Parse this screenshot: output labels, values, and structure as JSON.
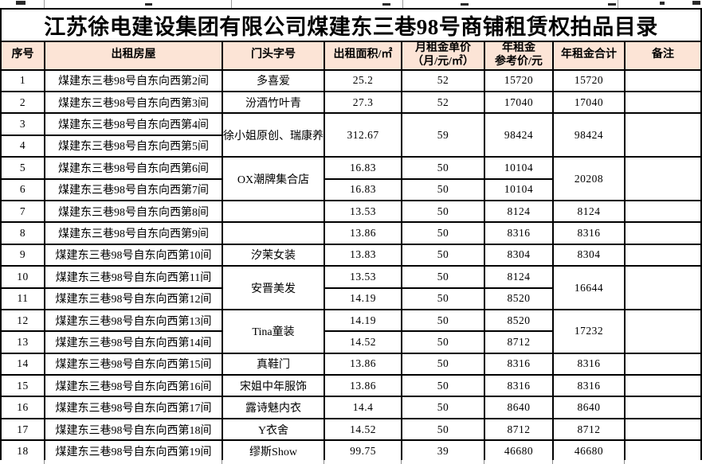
{
  "table": {
    "title": "江苏徐电建设集团有限公司煤建东三巷98号商铺租赁权拍品目录",
    "header_bg_color": "#FCE4D6",
    "border_color": "#000000",
    "columns": [
      {
        "id": "no",
        "lines": [
          "序号"
        ]
      },
      {
        "id": "house",
        "lines": [
          "出租房屋"
        ]
      },
      {
        "id": "shop",
        "lines": [
          "门头字号"
        ]
      },
      {
        "id": "area",
        "lines": [
          "出租面积/㎡"
        ]
      },
      {
        "id": "unit",
        "lines": [
          "月租金单价",
          "（月/元/㎡）"
        ]
      },
      {
        "id": "ref",
        "lines": [
          "年租金",
          "参考价/元"
        ]
      },
      {
        "id": "total",
        "lines": [
          "年租金合计"
        ]
      },
      {
        "id": "note",
        "lines": [
          "备注"
        ]
      }
    ],
    "rows": [
      {
        "no": "1",
        "house": "煤建东三巷98号自东向西第2间",
        "shop": "多喜爱",
        "area": "25.2",
        "unit": "52",
        "ref": "15720",
        "total": "15720",
        "note": ""
      },
      {
        "no": "2",
        "house": "煤建东三巷98号自东向西第3间",
        "shop": "汾酒竹叶青",
        "area": "27.3",
        "unit": "52",
        "ref": "17040",
        "total": "17040",
        "note": ""
      },
      {
        "no": "3",
        "house": "煤建东三巷98号自东向西第4间",
        "shop": {
          "v": "徐小姐原创、瑞康养生",
          "rs": 2
        },
        "area": {
          "v": "312.67",
          "rs": 2
        },
        "unit": {
          "v": "59",
          "rs": 2
        },
        "ref": {
          "v": "98424",
          "rs": 2
        },
        "total": {
          "v": "98424",
          "rs": 2
        },
        "note": {
          "v": "",
          "rs": 2
        }
      },
      {
        "no": "4",
        "house": "煤建东三巷98号自东向西第5间",
        "shop": null,
        "area": null,
        "unit": null,
        "ref": null,
        "total": null,
        "note": null
      },
      {
        "no": "5",
        "house": "煤建东三巷98号自东向西第6间",
        "shop": {
          "v": "OX潮牌集合店",
          "rs": 2
        },
        "area": "16.83",
        "unit": "50",
        "ref": "10104",
        "total": {
          "v": "20208",
          "rs": 2
        },
        "note": {
          "v": "",
          "rs": 2
        }
      },
      {
        "no": "6",
        "house": "煤建东三巷98号自东向西第7间",
        "shop": null,
        "area": "16.83",
        "unit": "50",
        "ref": "10104",
        "total": null,
        "note": null
      },
      {
        "no": "7",
        "house": "煤建东三巷98号自东向西第8间",
        "shop": "",
        "area": "13.53",
        "unit": "50",
        "ref": "8124",
        "total": "8124",
        "note": ""
      },
      {
        "no": "8",
        "house": "煤建东三巷98号自东向西第9间",
        "shop": "",
        "area": "13.86",
        "unit": "50",
        "ref": "8316",
        "total": "8316",
        "note": ""
      },
      {
        "no": "9",
        "house": "煤建东三巷98号自东向西第10间",
        "shop": "汐茉女装",
        "area": "13.83",
        "unit": "50",
        "ref": "8304",
        "total": "8304",
        "note": ""
      },
      {
        "no": "10",
        "house": "煤建东三巷98号自东向西第11间",
        "shop": {
          "v": "安晋美发",
          "rs": 2
        },
        "area": "13.53",
        "unit": "50",
        "ref": "8124",
        "total": {
          "v": "16644",
          "rs": 2
        },
        "note": {
          "v": "",
          "rs": 2
        }
      },
      {
        "no": "11",
        "house": "煤建东三巷98号自东向西第12间",
        "shop": null,
        "area": "14.19",
        "unit": "50",
        "ref": "8520",
        "total": null,
        "note": null
      },
      {
        "no": "12",
        "house": "煤建东三巷98号自东向西第13间",
        "shop": {
          "v": "Tina童装",
          "rs": 2
        },
        "area": "14.19",
        "unit": "50",
        "ref": "8520",
        "total": {
          "v": "17232",
          "rs": 2
        },
        "note": {
          "v": "",
          "rs": 2
        }
      },
      {
        "no": "13",
        "house": "煤建东三巷98号自东向西第14间",
        "shop": null,
        "area": "14.52",
        "unit": "50",
        "ref": "8712",
        "total": null,
        "note": null
      },
      {
        "no": "14",
        "house": "煤建东三巷98号自东向西第15间",
        "shop": "真鞋门",
        "area": "13.86",
        "unit": "50",
        "ref": "8316",
        "total": "8316",
        "note": ""
      },
      {
        "no": "15",
        "house": "煤建东三巷98号自东向西第16间",
        "shop": "宋姐中年服饰",
        "area": "13.86",
        "unit": "50",
        "ref": "8316",
        "total": "8316",
        "note": ""
      },
      {
        "no": "16",
        "house": "煤建东三巷98号自东向西第17间",
        "shop": "露诗魅内衣",
        "area": "14.4",
        "unit": "50",
        "ref": "8640",
        "total": "8640",
        "note": ""
      },
      {
        "no": "17",
        "house": "煤建东三巷98号自东向西第18间",
        "shop": "Y衣舍",
        "area": "14.52",
        "unit": "50",
        "ref": "8712",
        "total": "8712",
        "note": ""
      },
      {
        "no": "18",
        "house": "煤建东三巷98号自东向西第19间",
        "shop": "缪斯Show",
        "area": "99.75",
        "unit": "39",
        "ref": "46680",
        "total": "46680",
        "note": ""
      }
    ]
  }
}
